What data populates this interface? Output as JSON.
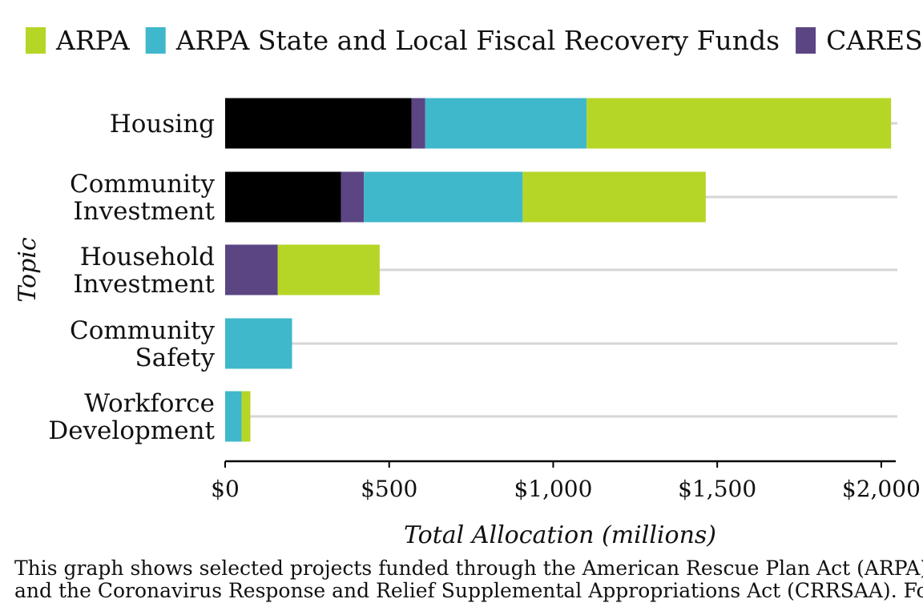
{
  "chart_data": {
    "type": "bar",
    "orientation": "horizontal",
    "stacked": true,
    "xlabel": "Total Allocation (millions)",
    "ylabel": "Topic",
    "xlim": [
      0,
      2050
    ],
    "xticks": [
      0,
      500,
      1000,
      1500,
      2000
    ],
    "xtick_labels": [
      "$0",
      "$500",
      "$1,000",
      "$1,500",
      "$2,000"
    ],
    "grid": "horizontal lines per category",
    "legend_position": "top",
    "categories": [
      [
        "Housing"
      ],
      [
        "Community",
        "Investment"
      ],
      [
        "Household",
        "Investment"
      ],
      [
        "Community",
        "Safety"
      ],
      [
        "Workforce",
        "Development"
      ]
    ],
    "series": [
      {
        "key": "unlabeled-black",
        "color": "#000000",
        "values": [
          568,
          353,
          0,
          0,
          0
        ]
      },
      {
        "key": "cares",
        "name": "CARES",
        "color": "#5b4583",
        "values": [
          42,
          70,
          160,
          0,
          0
        ]
      },
      {
        "key": "arpa-slfrf",
        "name": "ARPA State and Local Fiscal Recovery Funds",
        "color": "#3fb8cb",
        "values": [
          492,
          484,
          0,
          204,
          50
        ]
      },
      {
        "key": "arpa",
        "name": "ARPA",
        "color": "#b5d626",
        "values": [
          928,
          558,
          311,
          0,
          27
        ]
      }
    ]
  },
  "legend": {
    "items": [
      {
        "label": "ARPA",
        "color": "#b5d626"
      },
      {
        "label": "ARPA State and Local Fiscal Recovery Funds",
        "color": "#3fb8cb"
      },
      {
        "label": "CARES",
        "color": "#5b4583"
      }
    ]
  },
  "caption": {
    "line1": "This graph shows selected projects funded through the American Rescue Plan Act (ARPA)",
    "line2": "and the Coronavirus Response and Relief Supplemental Appropriations Act (CRRSAA). For"
  }
}
